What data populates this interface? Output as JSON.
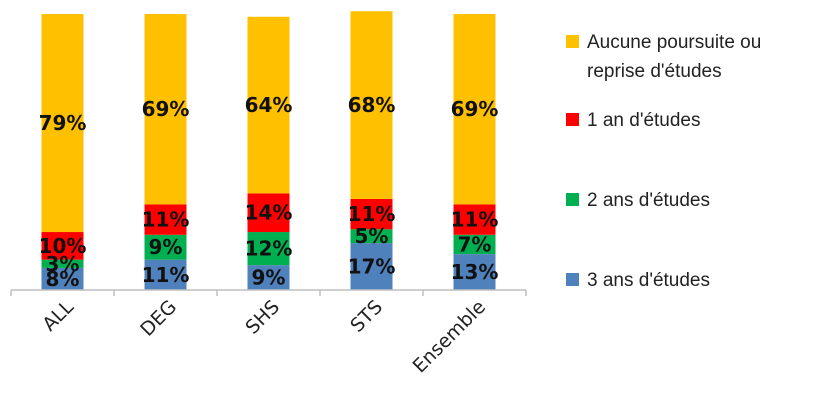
{
  "chart_data": {
    "type": "bar",
    "stacked": true,
    "percent": true,
    "categories": [
      "ALL",
      "DEG",
      "SHS",
      "STS",
      "Ensemble"
    ],
    "series": [
      {
        "name": "3 ans d'études",
        "color": "#4f81bd",
        "values": [
          8,
          11,
          9,
          17,
          13
        ]
      },
      {
        "name": "2 ans d'études",
        "color": "#00b050",
        "values": [
          3,
          9,
          12,
          5,
          7
        ]
      },
      {
        "name": "1 an d'études",
        "color": "#ff0000",
        "values": [
          10,
          11,
          14,
          11,
          11
        ]
      },
      {
        "name": "Aucune poursuite ou reprise d'études",
        "color": "#ffc000",
        "values": [
          79,
          69,
          64,
          68,
          69
        ]
      }
    ],
    "legend_order": [
      3,
      2,
      1,
      0
    ],
    "ylim": [
      0,
      100
    ],
    "grid": false,
    "legend_position": "right"
  }
}
